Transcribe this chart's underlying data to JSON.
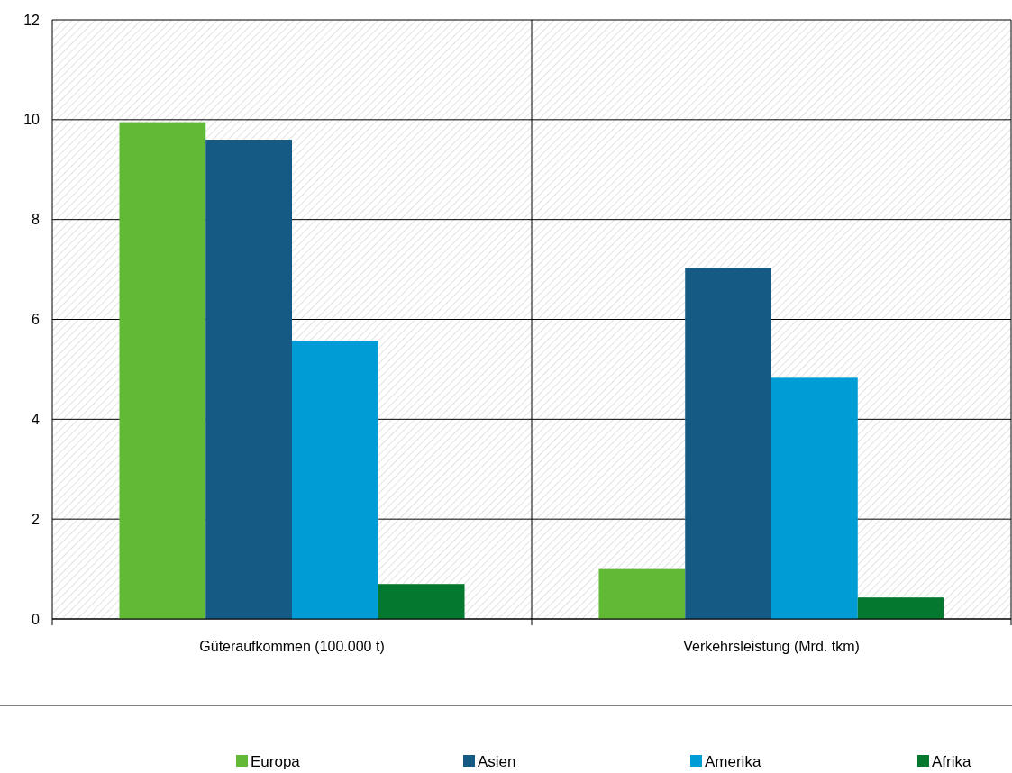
{
  "chart_data": {
    "type": "bar",
    "categories": [
      "Güteraufkommen (100.000 t)",
      "Verkehrsleistung (Mrd. tkm)"
    ],
    "series": [
      {
        "name": "Europa",
        "color": "#62b936",
        "values": [
          9.95,
          1.0
        ]
      },
      {
        "name": "Asien",
        "color": "#155a84",
        "values": [
          9.6,
          7.03
        ]
      },
      {
        "name": "Amerika",
        "color": "#009cd6",
        "values": [
          5.57,
          4.83
        ]
      },
      {
        "name": "Afrika",
        "color": "#04782e",
        "values": [
          0.7,
          0.43
        ]
      }
    ],
    "ylim": [
      0,
      12
    ],
    "yticks": [
      0,
      2,
      4,
      6,
      8,
      10,
      12
    ],
    "grid": true,
    "legend": "bottom"
  }
}
